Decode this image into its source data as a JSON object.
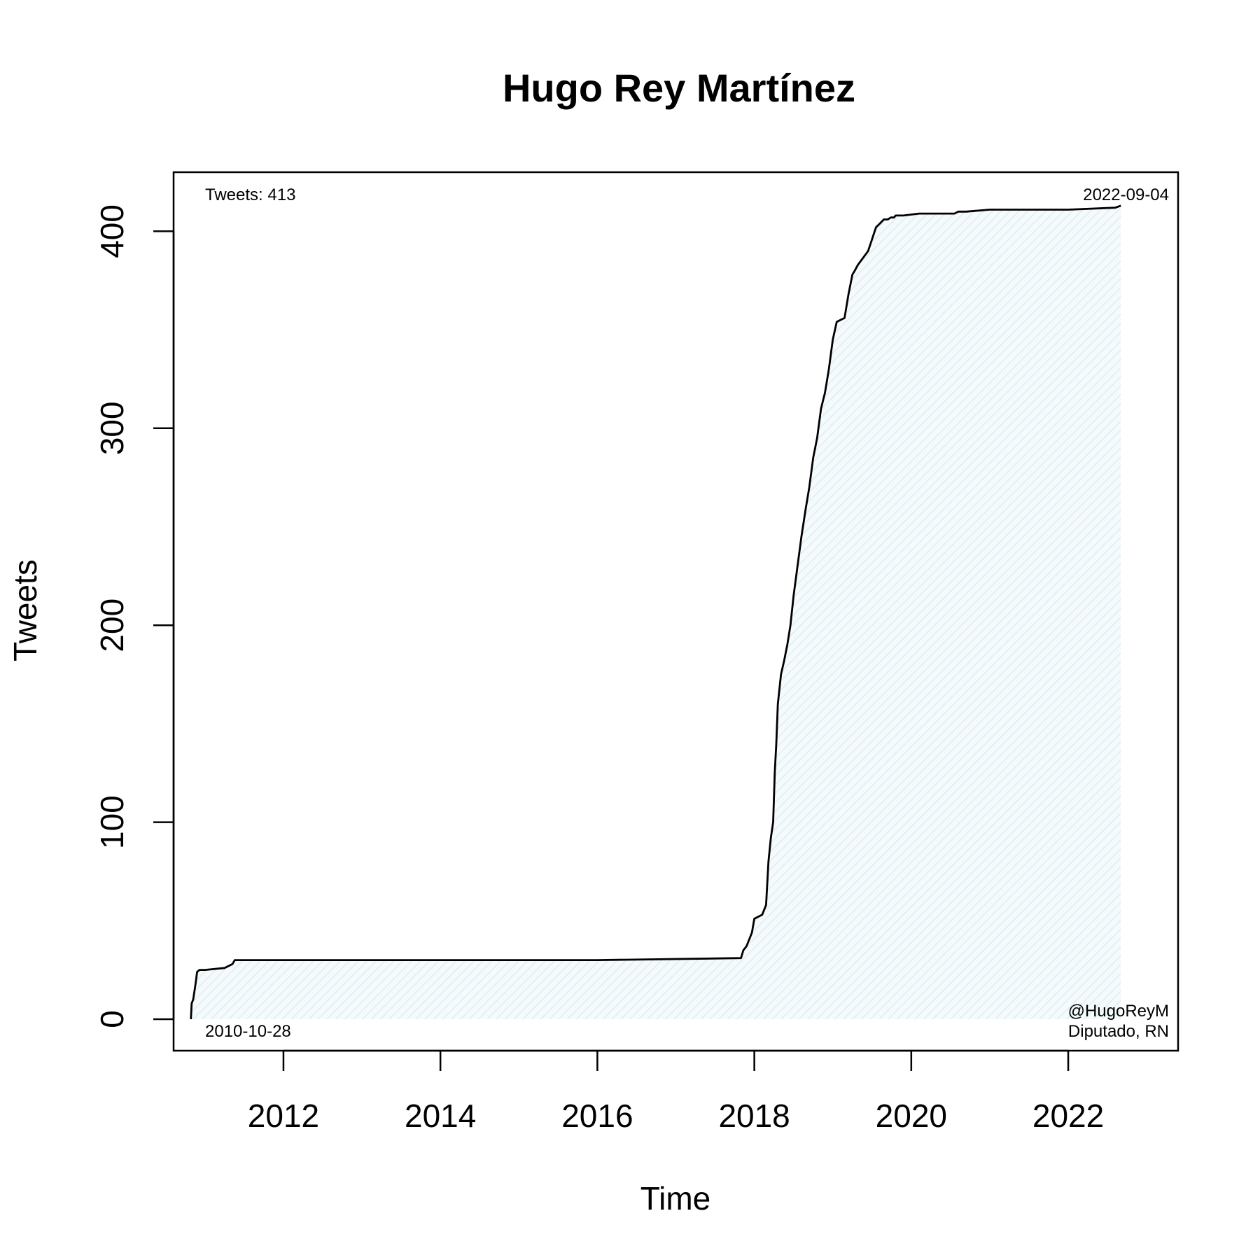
{
  "chart_data": {
    "type": "area",
    "title": "Hugo Rey Martínez",
    "xlabel": "Time",
    "ylabel": "Tweets",
    "xlim": [
      2010.6,
      2023.4
    ],
    "ylim": [
      -16,
      430
    ],
    "x_ticks": [
      2012,
      2014,
      2016,
      2018,
      2020,
      2022
    ],
    "y_ticks": [
      0,
      100,
      200,
      300,
      400
    ],
    "grid": false,
    "fill_color": "#d9ecf2",
    "line_color": "#000000",
    "annotations": {
      "top_left": "Tweets: 413",
      "top_right": "2022-09-04",
      "bottom_left": "2010-10-28",
      "bottom_right_1": "@HugoReyM",
      "bottom_right_2": "Diputado, RN"
    },
    "series": [
      {
        "x": [
          2010.82,
          2010.83,
          2010.85,
          2010.88,
          2010.9,
          2010.93,
          2010.97,
          2011.0,
          2011.25,
          2011.35,
          2011.38,
          2011.42,
          2011.6,
          2014.0,
          2016.0,
          2017.83,
          2017.86,
          2017.9,
          2017.93,
          2017.97,
          2018.0,
          2018.1,
          2018.15,
          2018.18,
          2018.21,
          2018.24,
          2018.26,
          2018.28,
          2018.3,
          2018.34,
          2018.38,
          2018.42,
          2018.46,
          2018.5,
          2018.55,
          2018.6,
          2018.65,
          2018.7,
          2018.75,
          2018.8,
          2018.85,
          2018.9,
          2018.95,
          2019.0,
          2019.05,
          2019.1,
          2019.15,
          2019.2,
          2019.25,
          2019.28,
          2019.32,
          2019.45,
          2019.5,
          2019.55,
          2019.6,
          2019.65,
          2019.7,
          2019.74,
          2019.78,
          2019.8,
          2019.85,
          2019.9,
          2020.1,
          2020.55,
          2020.6,
          2020.7,
          2021.0,
          2021.5,
          2022.0,
          2022.6,
          2022.67
        ],
        "y": [
          0,
          8,
          10,
          18,
          24,
          25,
          25,
          25,
          26,
          28,
          30,
          30,
          30,
          30,
          30,
          31,
          35,
          37,
          40,
          44,
          51,
          53,
          58,
          80,
          92,
          100,
          125,
          140,
          160,
          175,
          182,
          190,
          200,
          215,
          230,
          245,
          258,
          270,
          285,
          295,
          310,
          318,
          330,
          345,
          354,
          355,
          356,
          368,
          378,
          380,
          383,
          390,
          396,
          402,
          404,
          406,
          406,
          407,
          407,
          408,
          408,
          408,
          409,
          409,
          410,
          410,
          411,
          411,
          411,
          412,
          413
        ]
      }
    ]
  }
}
